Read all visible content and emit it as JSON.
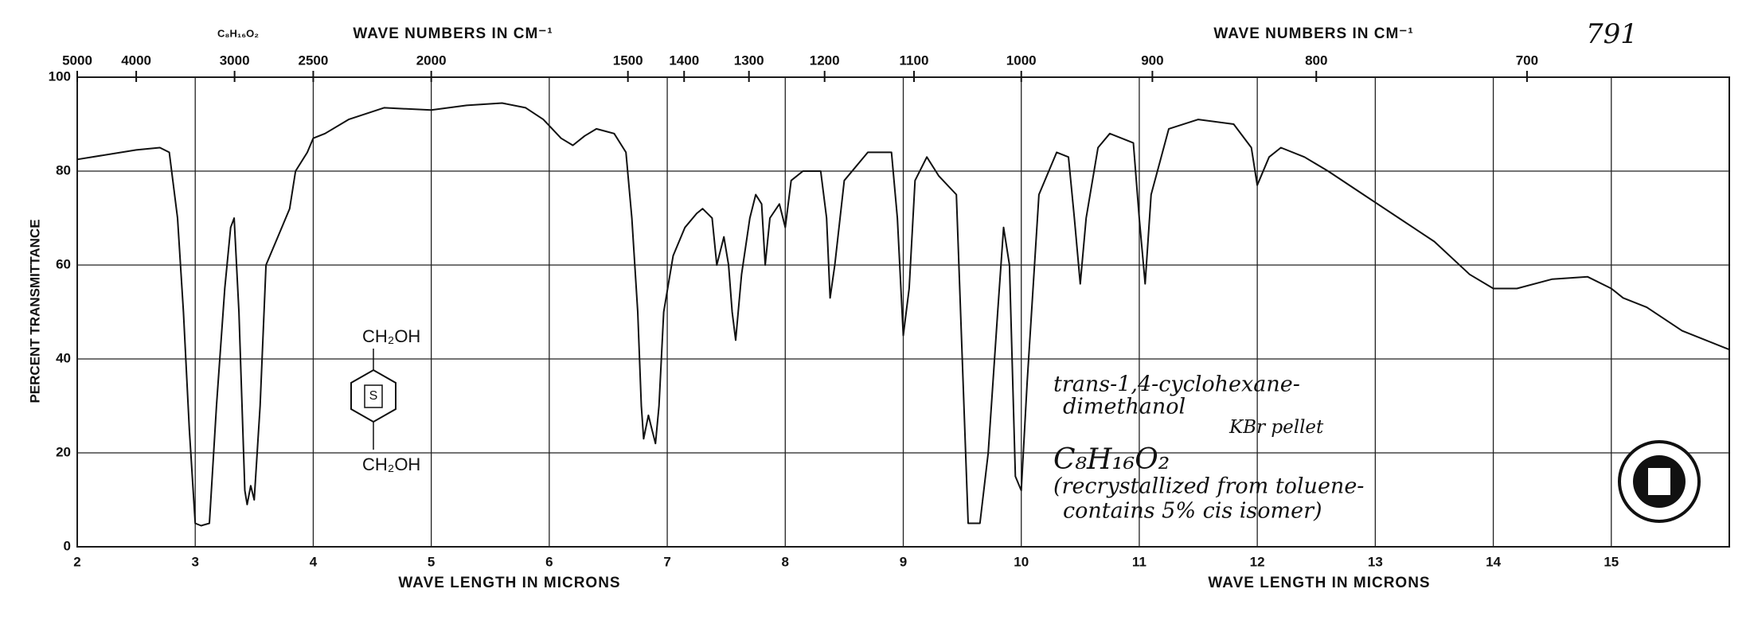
{
  "chart_data": {
    "type": "line",
    "id_number": "791",
    "formula_top": "C₈H₁₆O₂",
    "x2label": "WAVE NUMBERS IN CM⁻¹",
    "xlabel": "WAVE LENGTH IN MICRONS",
    "ylabel": "PERCENT TRANSMITTANCE",
    "x": [
      2.0,
      2.5,
      2.7,
      2.78,
      2.85,
      2.9,
      2.95,
      3.0,
      3.05,
      3.12,
      3.18,
      3.25,
      3.3,
      3.33,
      3.37,
      3.42,
      3.44,
      3.47,
      3.5,
      3.55,
      3.6,
      3.7,
      3.8,
      3.85,
      3.95,
      4.0,
      4.1,
      4.3,
      4.6,
      5.0,
      5.3,
      5.6,
      5.8,
      5.95,
      6.1,
      6.2,
      6.3,
      6.4,
      6.55,
      6.65,
      6.7,
      6.75,
      6.78,
      6.8,
      6.84,
      6.87,
      6.9,
      6.93,
      6.97,
      7.05,
      7.15,
      7.25,
      7.3,
      7.38,
      7.42,
      7.48,
      7.52,
      7.55,
      7.58,
      7.63,
      7.7,
      7.75,
      7.8,
      7.83,
      7.87,
      7.95,
      8.0,
      8.05,
      8.15,
      8.3,
      8.35,
      8.38,
      8.42,
      8.5,
      8.7,
      8.9,
      8.95,
      9.0,
      9.05,
      9.1,
      9.2,
      9.3,
      9.45,
      9.5,
      9.55,
      9.65,
      9.72,
      9.8,
      9.85,
      9.9,
      9.95,
      10.0,
      10.05,
      10.15,
      10.3,
      10.4,
      10.45,
      10.5,
      10.55,
      10.65,
      10.75,
      10.85,
      10.95,
      11.0,
      11.05,
      11.1,
      11.25,
      11.5,
      11.8,
      11.95,
      12.0,
      12.1,
      12.2,
      12.4,
      12.6,
      12.9,
      13.2,
      13.5,
      13.8,
      14.0,
      14.2,
      14.5,
      14.8,
      15.0,
      15.1,
      15.3,
      15.6,
      16.0
    ],
    "series": [
      {
        "color": "#111111",
        "values": [
          82.5,
          84.5,
          85,
          84,
          70,
          50,
          25,
          5,
          4.5,
          5,
          30,
          55,
          68,
          70,
          50,
          12,
          9,
          13,
          10,
          30,
          60,
          66,
          72,
          80,
          84,
          87,
          88,
          91,
          93.5,
          93,
          94,
          94.5,
          93.5,
          91,
          87,
          85.5,
          87.5,
          89,
          88,
          84,
          70,
          50,
          30,
          23,
          28,
          25,
          22,
          30,
          50,
          62,
          68,
          71,
          72,
          70,
          60,
          66,
          60,
          50,
          44,
          58,
          70,
          75,
          73,
          60,
          70,
          73,
          68,
          78,
          80,
          80,
          70,
          53,
          60,
          78,
          84,
          84,
          70,
          45,
          55,
          78,
          83,
          79,
          75,
          40,
          5,
          5,
          20,
          50,
          68,
          60,
          15,
          12,
          35,
          75,
          84,
          83,
          70,
          56,
          70,
          85,
          88,
          87,
          86,
          70,
          56,
          75,
          89,
          91,
          90,
          85,
          77,
          83,
          85,
          83,
          80,
          75,
          70,
          65,
          58,
          55,
          55,
          57,
          57.5,
          55,
          53,
          51,
          46,
          42
        ]
      }
    ],
    "xlim": [
      2,
      16
    ],
    "ylim": [
      0,
      100
    ],
    "xticks": [
      2,
      3,
      4,
      5,
      6,
      7,
      8,
      9,
      10,
      11,
      12,
      13,
      14,
      15
    ],
    "yticks": [
      0,
      20,
      40,
      60,
      80,
      100
    ],
    "x2ticks": [
      5000,
      4000,
      3000,
      2500,
      2000,
      1500,
      1400,
      1300,
      1200,
      1100,
      1000,
      900,
      800,
      700
    ],
    "grid": true,
    "structure": {
      "substituent_top": "CH₂OH",
      "ring_label": "S",
      "substituent_bottom": "CH₂OH"
    },
    "annotation": {
      "lines": [
        "trans-1,4-cyclohexane-",
        "dimethanol",
        "C₈H₁₆O₂",
        "(recrystallized from toluene-",
        "contains 5% cis isomer)"
      ],
      "sample_prep": "KBr pellet"
    }
  }
}
